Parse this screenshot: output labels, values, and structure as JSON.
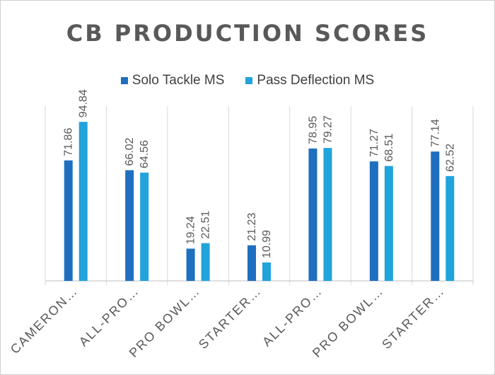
{
  "chart_data": {
    "type": "bar",
    "title": "CB PRODUCTION SCORES",
    "categories": [
      "CAMERON…",
      "ALL-PRO…",
      "PRO BOWL…",
      "STARTER…",
      "ALL-PRO…",
      "PRO BOWL…",
      "STARTER…"
    ],
    "series": [
      {
        "name": "Solo Tackle MS",
        "color": "#1f6fc0",
        "values": [
          71.86,
          66.02,
          19.24,
          21.23,
          78.95,
          71.27,
          77.14
        ]
      },
      {
        "name": "Pass Deflection MS",
        "color": "#21a3dc",
        "values": [
          94.84,
          64.56,
          22.51,
          10.99,
          79.27,
          68.51,
          62.52
        ]
      }
    ],
    "value_labels": [
      [
        "71.86",
        "66.02",
        "19.24",
        "21.23",
        "78.95",
        "71.27",
        "77.14"
      ],
      [
        "94.84",
        "64.56",
        "22.51",
        "10.99",
        "79.27",
        "68.51",
        "62.52"
      ]
    ],
    "xlabel": "",
    "ylabel": "",
    "ylim": [
      0,
      100
    ],
    "legend_position": "top",
    "grid": "vertical category separators"
  }
}
